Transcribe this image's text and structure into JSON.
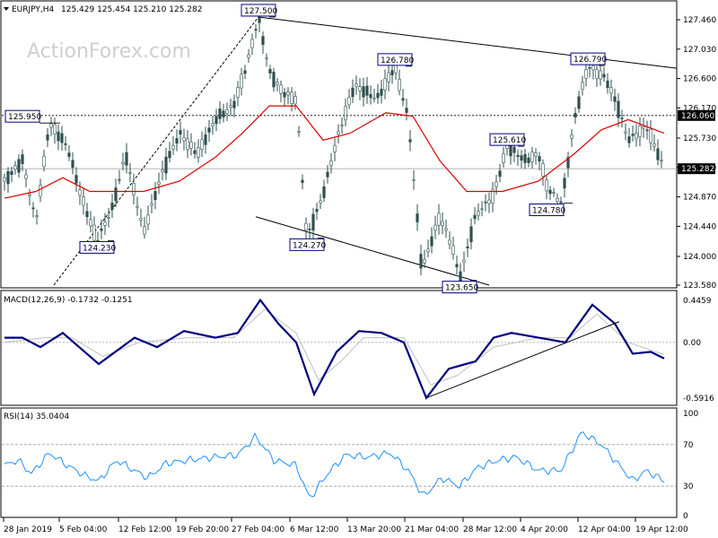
{
  "header": {
    "symbol": "EURJPY,H4",
    "ohlc": "125.429 125.454 125.210 125.282"
  },
  "watermark": "ActionForex.com",
  "colors": {
    "bull_candle": "#000000",
    "bear_candle": "#2f4f4f",
    "sma": "#e00000",
    "macd": "#000080",
    "macd_signal": "#c0c0c0",
    "rsi": "#1e90ff",
    "trendline": "#000000",
    "level_label_border": "#000080",
    "frame": "#000000"
  },
  "main_axis": {
    "ticks": [
      "127.460",
      "127.030",
      "126.600",
      "126.170",
      "125.730",
      "125.300",
      "124.870",
      "124.440",
      "124.000",
      "123.580"
    ],
    "tick_values": [
      127.46,
      127.03,
      126.6,
      126.17,
      125.73,
      125.3,
      124.87,
      124.44,
      124.0,
      123.58
    ]
  },
  "price_badges": {
    "resistance": "126.060",
    "last": "125.282"
  },
  "macd": {
    "title": "MACD(12,26,9) -0.1732 -0.1251",
    "ticks": [
      "0.4459",
      "0.00",
      "-0.5916"
    ],
    "tick_values": [
      0.4459,
      0.0,
      -0.5916
    ]
  },
  "rsi": {
    "title": "RSI(14) 35.0404",
    "ticks": [
      "100",
      "70",
      "30",
      "0"
    ],
    "tick_values": [
      100,
      70,
      30,
      0
    ]
  },
  "time_axis": [
    "28 Jan 2019",
    "5 Feb 04:00",
    "12 Feb 12:00",
    "19 Feb 20:00",
    "27 Feb 04:00",
    "6 Mar 12:00",
    "13 Mar 20:00",
    "21 Mar 04:00",
    "28 Mar 12:00",
    "4 Apr 20:00",
    "12 Apr 04:00",
    "19 Apr 12:00"
  ],
  "chart_data": {
    "type": "line",
    "price": {
      "pivots": [
        {
          "x": 5,
          "y": 125.1
        },
        {
          "x": 25,
          "y": 125.4
        },
        {
          "x": 40,
          "y": 124.5
        },
        {
          "x": 55,
          "y": 125.95
        },
        {
          "x": 75,
          "y": 125.6
        },
        {
          "x": 90,
          "y": 124.9
        },
        {
          "x": 108,
          "y": 124.23
        },
        {
          "x": 125,
          "y": 124.7
        },
        {
          "x": 140,
          "y": 125.5
        },
        {
          "x": 160,
          "y": 124.35
        },
        {
          "x": 180,
          "y": 125.2
        },
        {
          "x": 200,
          "y": 125.8
        },
        {
          "x": 220,
          "y": 125.5
        },
        {
          "x": 240,
          "y": 126.0
        },
        {
          "x": 260,
          "y": 126.2
        },
        {
          "x": 275,
          "y": 126.8
        },
        {
          "x": 288,
          "y": 127.5
        },
        {
          "x": 300,
          "y": 126.7
        },
        {
          "x": 315,
          "y": 126.4
        },
        {
          "x": 330,
          "y": 126.3
        },
        {
          "x": 342,
          "y": 124.27
        },
        {
          "x": 360,
          "y": 124.9
        },
        {
          "x": 375,
          "y": 125.7
        },
        {
          "x": 395,
          "y": 126.5
        },
        {
          "x": 420,
          "y": 126.3
        },
        {
          "x": 440,
          "y": 126.78
        },
        {
          "x": 455,
          "y": 126.0
        },
        {
          "x": 470,
          "y": 123.8
        },
        {
          "x": 490,
          "y": 124.6
        },
        {
          "x": 505,
          "y": 124.1
        },
        {
          "x": 512,
          "y": 123.65
        },
        {
          "x": 530,
          "y": 124.6
        },
        {
          "x": 550,
          "y": 124.9
        },
        {
          "x": 565,
          "y": 125.61
        },
        {
          "x": 585,
          "y": 125.4
        },
        {
          "x": 600,
          "y": 125.5
        },
        {
          "x": 610,
          "y": 125.0
        },
        {
          "x": 626,
          "y": 124.78
        },
        {
          "x": 640,
          "y": 126.0
        },
        {
          "x": 655,
          "y": 126.79
        },
        {
          "x": 675,
          "y": 126.6
        },
        {
          "x": 688,
          "y": 126.2
        },
        {
          "x": 700,
          "y": 125.7
        },
        {
          "x": 720,
          "y": 125.9
        },
        {
          "x": 730,
          "y": 125.6
        },
        {
          "x": 740,
          "y": 125.28
        }
      ],
      "sma": [
        {
          "x": 5,
          "y": 124.85
        },
        {
          "x": 40,
          "y": 124.95
        },
        {
          "x": 70,
          "y": 125.15
        },
        {
          "x": 100,
          "y": 124.95
        },
        {
          "x": 130,
          "y": 124.95
        },
        {
          "x": 160,
          "y": 124.95
        },
        {
          "x": 200,
          "y": 125.1
        },
        {
          "x": 240,
          "y": 125.45
        },
        {
          "x": 270,
          "y": 125.8
        },
        {
          "x": 300,
          "y": 126.2
        },
        {
          "x": 330,
          "y": 126.2
        },
        {
          "x": 360,
          "y": 125.7
        },
        {
          "x": 390,
          "y": 125.8
        },
        {
          "x": 430,
          "y": 126.1
        },
        {
          "x": 460,
          "y": 126.05
        },
        {
          "x": 490,
          "y": 125.4
        },
        {
          "x": 520,
          "y": 124.95
        },
        {
          "x": 560,
          "y": 124.95
        },
        {
          "x": 600,
          "y": 125.1
        },
        {
          "x": 640,
          "y": 125.5
        },
        {
          "x": 670,
          "y": 125.85
        },
        {
          "x": 700,
          "y": 126.0
        },
        {
          "x": 740,
          "y": 125.8
        }
      ],
      "annotations": [
        {
          "label": "127.500",
          "x": 288,
          "y": 127.5
        },
        {
          "label": "126.780",
          "x": 440,
          "y": 126.78
        },
        {
          "label": "126.790",
          "x": 655,
          "y": 126.79
        },
        {
          "label": "125.950",
          "x": 55,
          "y": 125.95
        },
        {
          "label": "125.610",
          "x": 565,
          "y": 125.61
        },
        {
          "label": "124.780",
          "x": 626,
          "y": 124.78
        },
        {
          "label": "124.270",
          "x": 342,
          "y": 124.27
        },
        {
          "label": "124.230",
          "x": 108,
          "y": 124.23
        },
        {
          "label": "123.650",
          "x": 512,
          "y": 123.65
        }
      ],
      "horizontal_levels": [
        126.06,
        125.282
      ]
    },
    "macd": [
      {
        "x": 5,
        "y": 0.05
      },
      {
        "x": 25,
        "y": 0.05
      },
      {
        "x": 45,
        "y": -0.05
      },
      {
        "x": 70,
        "y": 0.1
      },
      {
        "x": 110,
        "y": -0.23
      },
      {
        "x": 150,
        "y": 0.05
      },
      {
        "x": 175,
        "y": -0.05
      },
      {
        "x": 205,
        "y": 0.12
      },
      {
        "x": 240,
        "y": 0.05
      },
      {
        "x": 265,
        "y": 0.1
      },
      {
        "x": 290,
        "y": 0.45
      },
      {
        "x": 310,
        "y": 0.2
      },
      {
        "x": 330,
        "y": 0.0
      },
      {
        "x": 350,
        "y": -0.55
      },
      {
        "x": 375,
        "y": -0.1
      },
      {
        "x": 400,
        "y": 0.12
      },
      {
        "x": 425,
        "y": 0.1
      },
      {
        "x": 450,
        "y": 0.0
      },
      {
        "x": 475,
        "y": -0.59
      },
      {
        "x": 500,
        "y": -0.28
      },
      {
        "x": 530,
        "y": -0.2
      },
      {
        "x": 550,
        "y": 0.05
      },
      {
        "x": 570,
        "y": 0.1
      },
      {
        "x": 600,
        "y": 0.05
      },
      {
        "x": 630,
        "y": 0.0
      },
      {
        "x": 660,
        "y": 0.4
      },
      {
        "x": 685,
        "y": 0.2
      },
      {
        "x": 705,
        "y": -0.12
      },
      {
        "x": 725,
        "y": -0.1
      },
      {
        "x": 740,
        "y": -0.17
      }
    ],
    "macd_signal": [
      {
        "x": 5,
        "y": 0.0
      },
      {
        "x": 50,
        "y": 0.05
      },
      {
        "x": 80,
        "y": 0.05
      },
      {
        "x": 115,
        "y": -0.15
      },
      {
        "x": 155,
        "y": 0.0
      },
      {
        "x": 210,
        "y": 0.05
      },
      {
        "x": 260,
        "y": 0.05
      },
      {
        "x": 295,
        "y": 0.35
      },
      {
        "x": 330,
        "y": 0.1
      },
      {
        "x": 355,
        "y": -0.4
      },
      {
        "x": 380,
        "y": -0.2
      },
      {
        "x": 405,
        "y": 0.05
      },
      {
        "x": 450,
        "y": 0.05
      },
      {
        "x": 480,
        "y": -0.45
      },
      {
        "x": 510,
        "y": -0.35
      },
      {
        "x": 550,
        "y": -0.05
      },
      {
        "x": 600,
        "y": 0.05
      },
      {
        "x": 635,
        "y": 0.05
      },
      {
        "x": 665,
        "y": 0.3
      },
      {
        "x": 700,
        "y": 0.0
      },
      {
        "x": 740,
        "y": -0.13
      }
    ],
    "macd_trendline": [
      {
        "x": 475,
        "y": -0.59
      },
      {
        "x": 690,
        "y": 0.22
      }
    ],
    "rsi": [
      {
        "x": 5,
        "y": 50
      },
      {
        "x": 20,
        "y": 55
      },
      {
        "x": 35,
        "y": 42
      },
      {
        "x": 55,
        "y": 62
      },
      {
        "x": 75,
        "y": 50
      },
      {
        "x": 95,
        "y": 40
      },
      {
        "x": 110,
        "y": 35
      },
      {
        "x": 130,
        "y": 55
      },
      {
        "x": 150,
        "y": 45
      },
      {
        "x": 165,
        "y": 38
      },
      {
        "x": 185,
        "y": 52
      },
      {
        "x": 210,
        "y": 55
      },
      {
        "x": 240,
        "y": 58
      },
      {
        "x": 265,
        "y": 60
      },
      {
        "x": 285,
        "y": 78
      },
      {
        "x": 305,
        "y": 55
      },
      {
        "x": 330,
        "y": 50
      },
      {
        "x": 345,
        "y": 18
      },
      {
        "x": 365,
        "y": 42
      },
      {
        "x": 385,
        "y": 60
      },
      {
        "x": 410,
        "y": 58
      },
      {
        "x": 435,
        "y": 62
      },
      {
        "x": 455,
        "y": 45
      },
      {
        "x": 472,
        "y": 20
      },
      {
        "x": 492,
        "y": 38
      },
      {
        "x": 512,
        "y": 30
      },
      {
        "x": 532,
        "y": 48
      },
      {
        "x": 555,
        "y": 55
      },
      {
        "x": 575,
        "y": 58
      },
      {
        "x": 600,
        "y": 45
      },
      {
        "x": 625,
        "y": 45
      },
      {
        "x": 648,
        "y": 82
      },
      {
        "x": 670,
        "y": 70
      },
      {
        "x": 690,
        "y": 50
      },
      {
        "x": 705,
        "y": 35
      },
      {
        "x": 720,
        "y": 45
      },
      {
        "x": 730,
        "y": 40
      },
      {
        "x": 740,
        "y": 35
      }
    ],
    "ylim": [
      123.58,
      127.46
    ]
  }
}
